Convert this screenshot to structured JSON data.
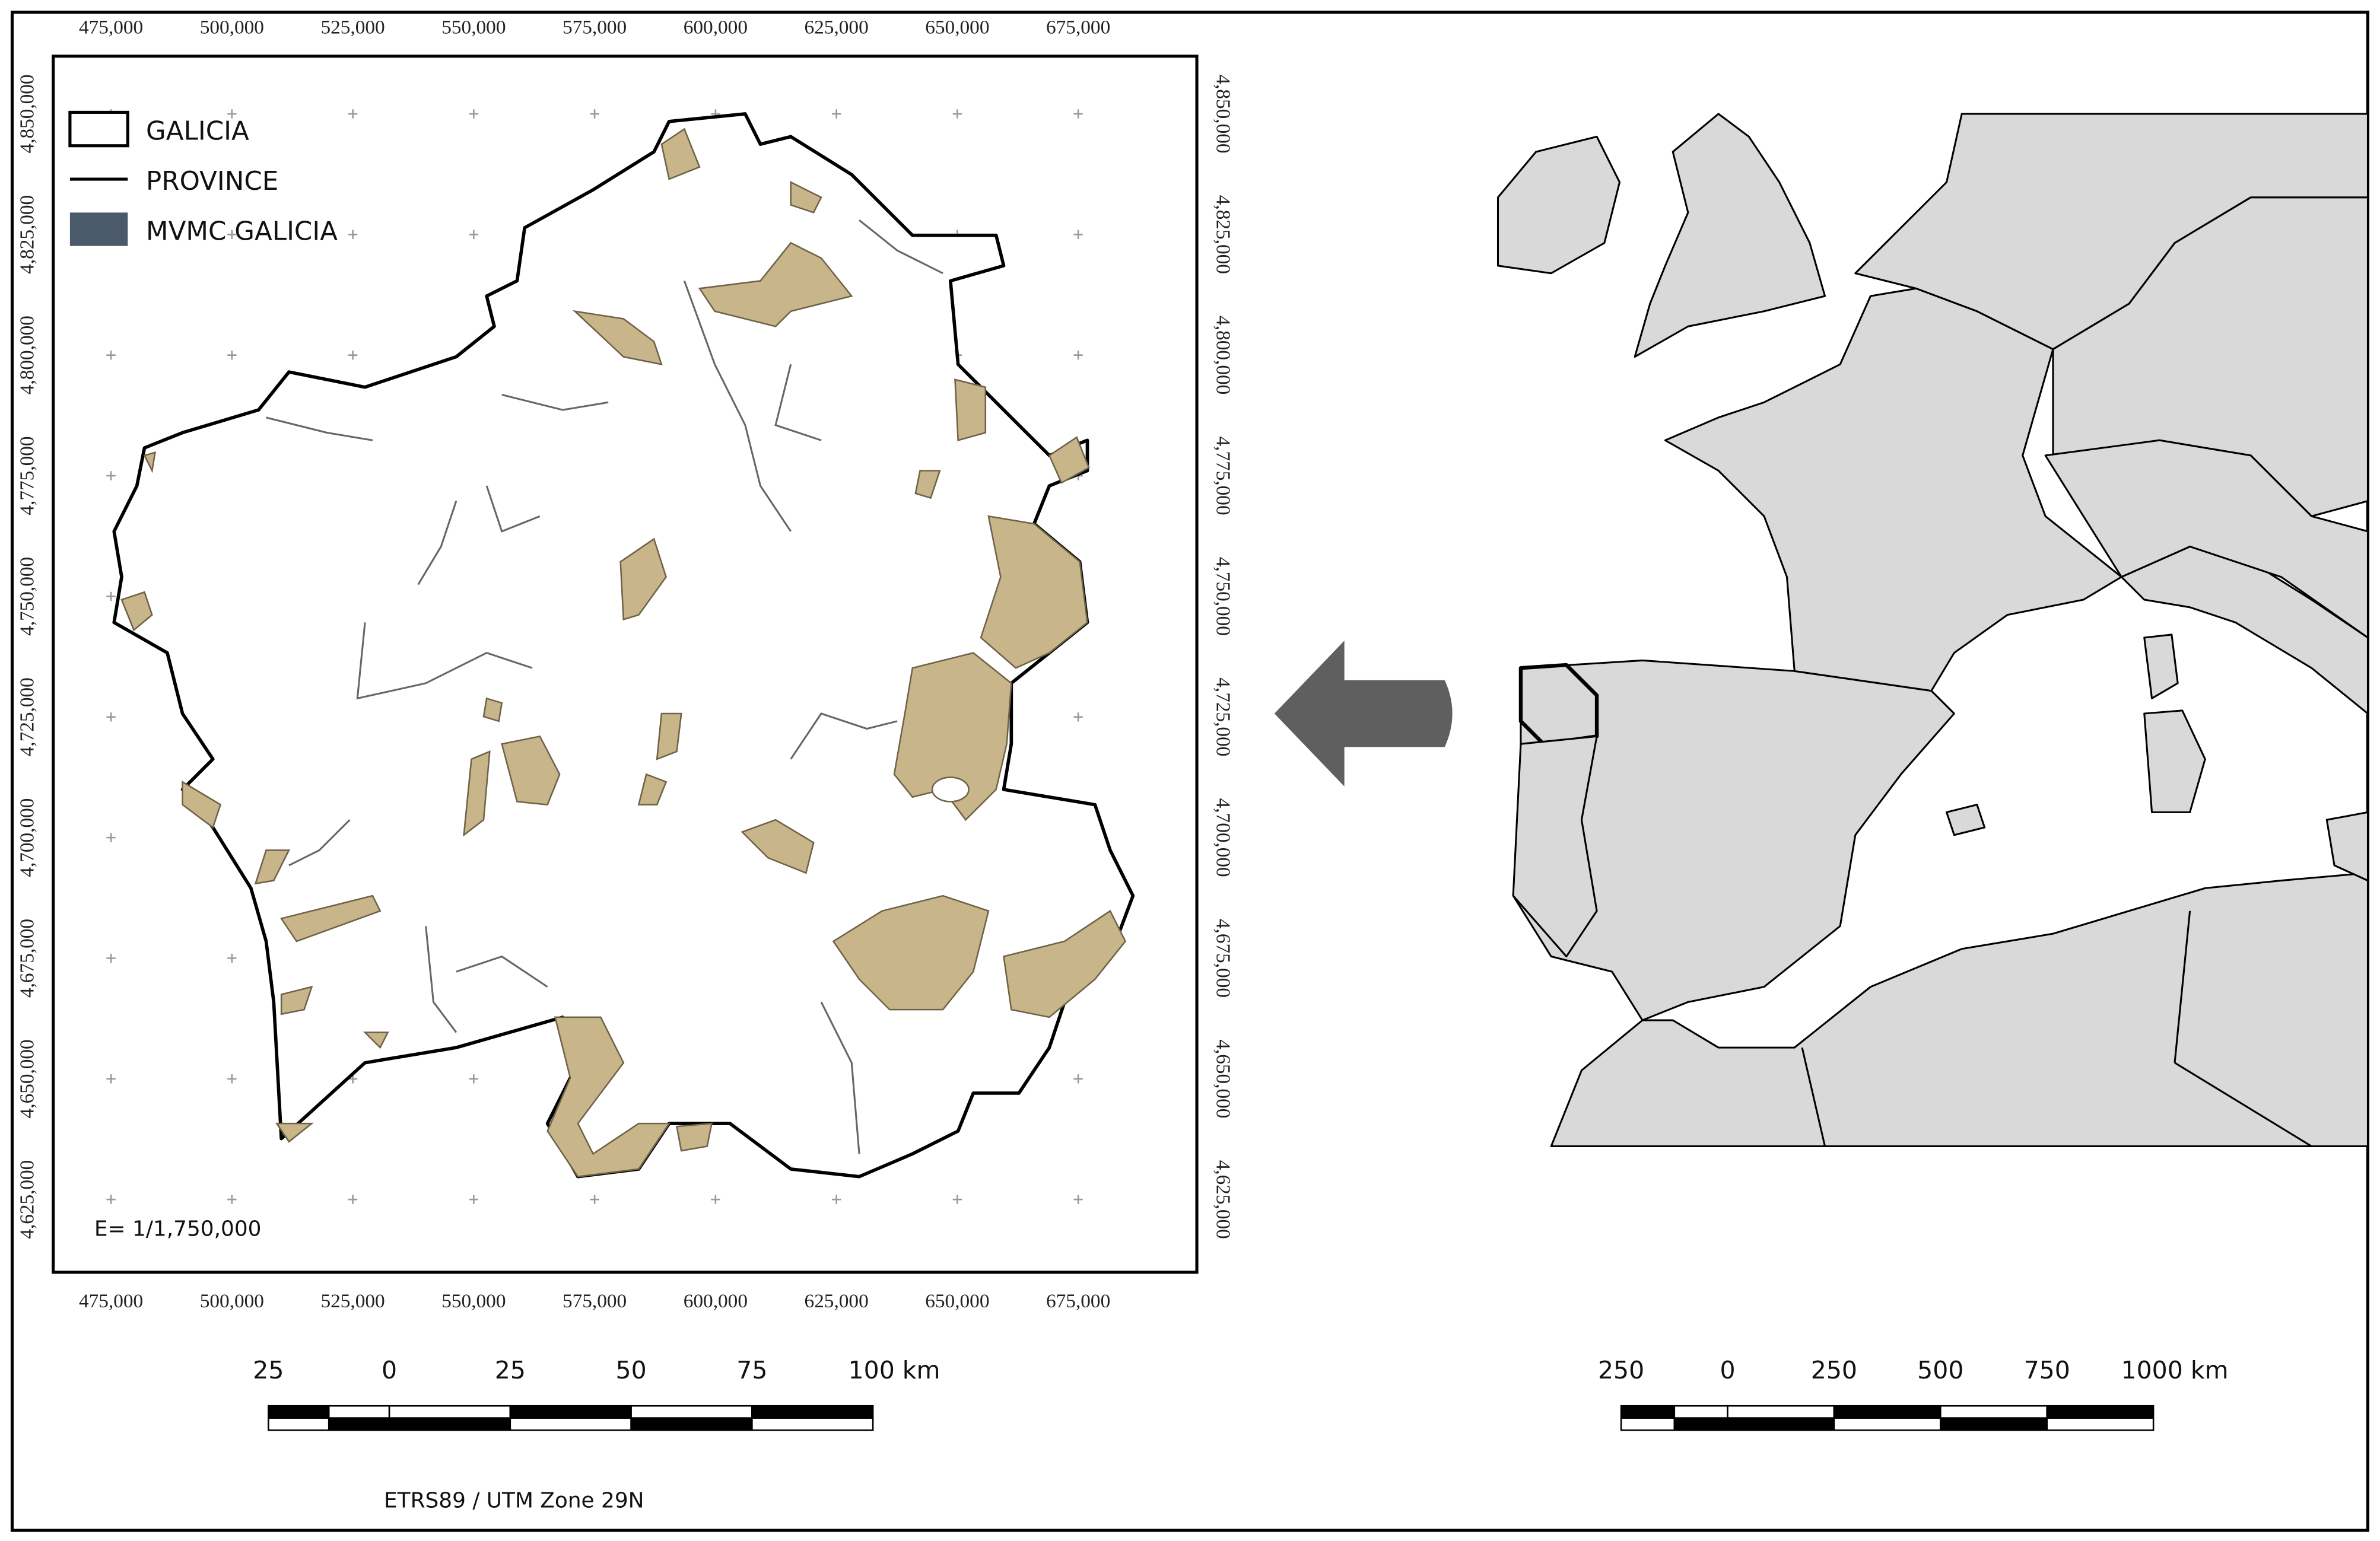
{
  "map": {
    "x_ticks": [
      {
        "value": 475000,
        "label": "475,000"
      },
      {
        "value": 500000,
        "label": "500,000"
      },
      {
        "value": 525000,
        "label": "525,000"
      },
      {
        "value": 550000,
        "label": "550,000"
      },
      {
        "value": 575000,
        "label": "575,000"
      },
      {
        "value": 600000,
        "label": "600,000"
      },
      {
        "value": 625000,
        "label": "625,000"
      },
      {
        "value": 650000,
        "label": "650,000"
      },
      {
        "value": 675000,
        "label": "675,000"
      }
    ],
    "y_ticks": [
      {
        "value": 4850000,
        "label": "4,850,000"
      },
      {
        "value": 4825000,
        "label": "4,825,000"
      },
      {
        "value": 4800000,
        "label": "4,800,000"
      },
      {
        "value": 4775000,
        "label": "4,775,000"
      },
      {
        "value": 4750000,
        "label": "4,750,000"
      },
      {
        "value": 4725000,
        "label": "4,725,000"
      },
      {
        "value": 4700000,
        "label": "4,700,000"
      },
      {
        "value": 4675000,
        "label": "4,675,000"
      },
      {
        "value": 4650000,
        "label": "4,650,000"
      },
      {
        "value": 4625000,
        "label": "4,625,000"
      }
    ],
    "legend": [
      "GALICIA",
      "PROVINCE",
      "MVMC GALICIA"
    ],
    "scale": "E= 1/1,750,000",
    "crs": "ETRS89 / UTM Zone 29N",
    "scale_bar": [
      {
        "value": -25,
        "label": "25"
      },
      {
        "value": 0,
        "label": "0"
      },
      {
        "value": 25,
        "label": "25"
      },
      {
        "value": 50,
        "label": "50"
      },
      {
        "value": 75,
        "label": "75"
      },
      {
        "value": 100,
        "label": "100 km"
      }
    ]
  },
  "overview": {
    "scale_bar": [
      {
        "value": -250,
        "label": "250"
      },
      {
        "value": 0,
        "label": "0"
      },
      {
        "value": 250,
        "label": "250"
      },
      {
        "value": 500,
        "label": "500"
      },
      {
        "value": 750,
        "label": "750"
      },
      {
        "value": 1000,
        "label": "1000 km"
      }
    ]
  }
}
